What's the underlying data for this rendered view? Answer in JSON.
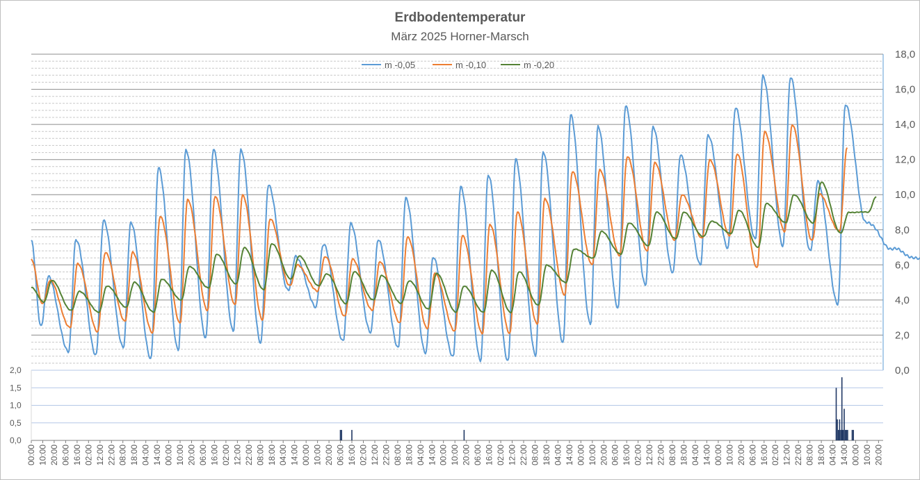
{
  "chart_data": [
    {
      "type": "line",
      "title": "Erdbodentemperatur",
      "subtitle": "März 2025 Horner-Marsch",
      "ylim": [
        0,
        18
      ],
      "y_ticks": [
        "0,0",
        "2,0",
        "4,0",
        "6,0",
        "8,0",
        "10,0",
        "12,0",
        "14,0",
        "16,0",
        "18,0"
      ],
      "y_axis_side": "right",
      "grid": true,
      "legend": "top-center",
      "x_unit": "hours from 1 March 2025 00:00",
      "x_range": [
        0,
        744
      ],
      "x_tick_step_hours": 10,
      "series": [
        {
          "name": "m -0,05",
          "color": "#5b9bd5",
          "lows": [
            7.4,
            2.5,
            1.0,
            0.9,
            1.3,
            0.6,
            1.2,
            1.8,
            2.2,
            1.6,
            4.5,
            3.6,
            1.7,
            2.1,
            1.3,
            1.0,
            0.7,
            0.6,
            0.5,
            0.8,
            1.6,
            2.6,
            3.5,
            4.9,
            5.5,
            6.0,
            7.0,
            7.4,
            7.1,
            6.8,
            3.7,
            8.5,
            6.9,
            6.3,
            5.6
          ],
          "highs": [
            5.3,
            7.5,
            8.5,
            8.4,
            11.6,
            12.5,
            12.6,
            12.6,
            10.5,
            6.5,
            7.2,
            8.3,
            7.5,
            9.8,
            6.4,
            10.5,
            11.1,
            12.0,
            12.5,
            14.5,
            13.9,
            15.1,
            13.8,
            12.3,
            13.4,
            14.9,
            16.8,
            16.7,
            10.7,
            15.2
          ]
        },
        {
          "name": "m -0,10",
          "color": "#ed7d31",
          "lows": [
            6.3,
            3.8,
            2.4,
            2.2,
            2.8,
            2.1,
            2.7,
            3.4,
            3.7,
            2.9,
            4.8,
            4.5,
            3.1,
            3.4,
            2.7,
            2.4,
            2.2,
            2.1,
            2.1,
            2.6,
            4.3,
            6.0,
            6.5,
            6.8,
            7.4,
            7.5,
            7.7,
            5.8,
            7.9,
            7.4,
            7.9
          ],
          "highs": [
            5.1,
            6.1,
            6.7,
            6.7,
            8.8,
            9.7,
            9.9,
            10.0,
            8.6,
            6.0,
            6.5,
            6.3,
            6.2,
            7.6,
            5.5,
            7.7,
            8.3,
            9.0,
            9.8,
            11.3,
            11.4,
            12.2,
            11.8,
            10.0,
            12.0,
            12.3,
            13.6,
            14.0,
            10.0,
            12.7
          ]
        },
        {
          "name": "m -0,20",
          "color": "#548235",
          "lows": [
            4.7,
            3.9,
            3.4,
            3.3,
            3.6,
            3.3,
            4.0,
            4.7,
            4.9,
            4.6,
            5.2,
            4.8,
            3.8,
            4.0,
            3.8,
            3.5,
            3.3,
            3.3,
            3.3,
            3.7,
            5.0,
            6.4,
            6.6,
            7.1,
            7.5,
            7.6,
            7.8,
            7.0,
            8.4,
            8.4,
            7.8,
            9.0
          ],
          "highs": [
            5.1,
            4.5,
            4.8,
            5.0,
            5.2,
            5.9,
            6.6,
            7.0,
            7.2,
            6.5,
            5.5,
            5.6,
            5.4,
            5.1,
            5.5,
            4.8,
            5.7,
            5.6,
            6.0,
            6.9,
            7.9,
            8.4,
            9.0,
            9.0,
            8.5,
            9.1,
            9.5,
            10.0,
            10.7,
            9.0,
            9.9
          ]
        }
      ]
    },
    {
      "type": "bar",
      "ylim": [
        0,
        2
      ],
      "y_ticks": [
        "0,0",
        "0,5",
        "1,0",
        "1,5",
        "2,0"
      ],
      "y_axis_side": "left",
      "grid": true,
      "x_unit": "hours from 1 March 2025 00:00",
      "x_ticks": [
        "00:00",
        "10:00",
        "20:00",
        "06:00",
        "16:00",
        "02:00",
        "12:00",
        "22:00",
        "08:00",
        "18:00",
        "04:00",
        "14:00",
        "00:00",
        "10:00",
        "20:00",
        "06:00",
        "16:00",
        "02:00",
        "12:00",
        "22:00",
        "08:00",
        "18:00",
        "04:00",
        "14:00",
        "00:00",
        "10:00",
        "20:00",
        "06:00",
        "16:00",
        "02:00",
        "12:00",
        "22:00",
        "08:00",
        "18:00",
        "04:00",
        "14:00",
        "00:00",
        "10:00",
        "20:00",
        "06:00",
        "16:00",
        "02:00",
        "12:00",
        "22:00",
        "08:00",
        "18:00",
        "04:00",
        "14:00",
        "00:00",
        "10:00",
        "20:00",
        "06:00",
        "16:00",
        "02:00",
        "12:00",
        "22:00",
        "08:00",
        "18:00",
        "04:00",
        "14:00",
        "00:00",
        "10:00",
        "20:00",
        "06:00",
        "16:00",
        "02:00",
        "12:00",
        "22:00",
        "08:00",
        "18:00",
        "04:00",
        "14:00",
        "00:00",
        "10:00",
        "20:00"
      ],
      "series": [
        {
          "color": "#203864",
          "x": [
            270,
            271,
            280,
            378,
            703,
            704,
            705,
            706,
            707,
            708,
            709,
            710,
            711,
            712,
            713,
            717,
            718
          ],
          "values": [
            0.3,
            0.3,
            0.3,
            0.3,
            1.5,
            0.6,
            0.3,
            0.6,
            0.3,
            1.8,
            0.3,
            0.9,
            0.3,
            0.3,
            0.3,
            0.3,
            0.3
          ]
        }
      ]
    }
  ]
}
